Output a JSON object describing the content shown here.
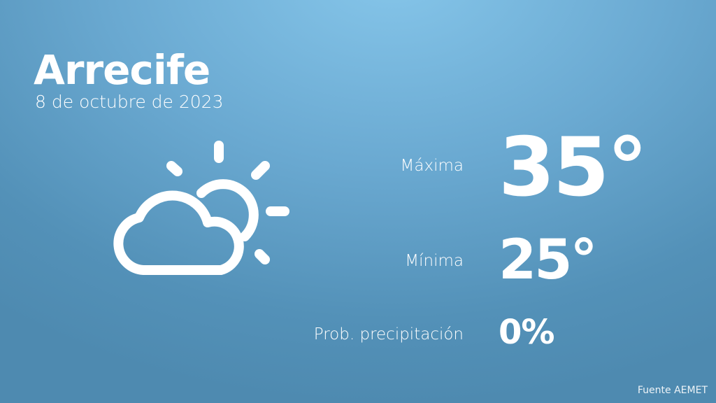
{
  "city": "Arrecife",
  "date": "8 de octubre de 2023",
  "weather_icon": "partly-cloudy-icon",
  "max": {
    "label": "Máxima",
    "value": "35°"
  },
  "min": {
    "label": "Mínima",
    "value": "25°"
  },
  "precip": {
    "label": "Prob. precipitación",
    "value": "0%"
  },
  "source": "Fuente AEMET",
  "colors": {
    "background_top": "#86c6ea",
    "background_bottom": "#4e8ab0",
    "text": "#ffffff"
  }
}
